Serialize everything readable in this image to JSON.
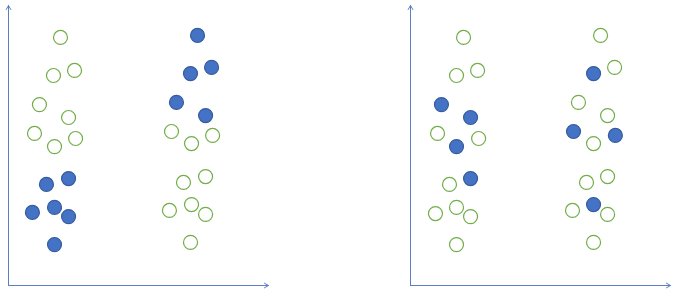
{
  "chart_data": [
    {
      "type": "scatter",
      "xlim": [
        0,
        100
      ],
      "ylim": [
        0,
        100
      ],
      "xticks": [],
      "yticks": [],
      "tick_labels": false,
      "series": [
        {
          "color": "#4472c4",
          "marker": "filled",
          "x": [
            14.6,
            23.1,
            9.2,
            17.7,
            23.1,
            17.7,
            72.7,
            70,
            78.1,
            64.6,
            75.8
          ],
          "y": [
            36.1,
            38.2,
            26.1,
            27.9,
            24.6,
            14.6,
            89.3,
            75.7,
            77.9,
            65.4,
            60.7
          ]
        },
        {
          "color": "#70ad47",
          "marker": "open",
          "x": [
            20,
            17.3,
            25.4,
            11.9,
            23.1,
            10,
            17.7,
            25.8,
            62.7,
            70.4,
            78.5,
            67.3,
            75.8,
            61.9,
            70.4,
            75.8,
            70
          ],
          "y": [
            88.6,
            75,
            76.8,
            64.6,
            60,
            54.3,
            49.6,
            52.5,
            55,
            50.7,
            53.6,
            36.8,
            38.9,
            26.8,
            28.9,
            25.4,
            15.4
          ]
        }
      ]
    },
    {
      "type": "scatter",
      "xlim": [
        0,
        100
      ],
      "ylim": [
        0,
        100
      ],
      "xticks": [],
      "yticks": [],
      "tick_labels": false,
      "series": [
        {
          "color": "#4472c4",
          "marker": "filled",
          "x": [
            11.9,
            23.1,
            17.7,
            23.1,
            70.4,
            62.7,
            78.8,
            70.4
          ],
          "y": [
            64.6,
            60,
            49.6,
            38.2,
            75.7,
            55,
            53.6,
            28.9
          ]
        },
        {
          "color": "#70ad47",
          "marker": "open",
          "x": [
            20.4,
            17.7,
            25.8,
            10.4,
            26.2,
            15,
            9.6,
            17.7,
            23.1,
            17.7,
            73.1,
            78.5,
            64.6,
            75.8,
            70.4,
            67.7,
            75.8,
            62.3,
            75.8,
            70.4
          ],
          "y": [
            88.6,
            75,
            76.8,
            54.3,
            52.5,
            36.1,
            25.7,
            27.9,
            24.6,
            14.6,
            89.3,
            77.9,
            65.4,
            60.7,
            50.7,
            36.8,
            38.9,
            26.8,
            25.4,
            15.4
          ]
        }
      ]
    }
  ]
}
